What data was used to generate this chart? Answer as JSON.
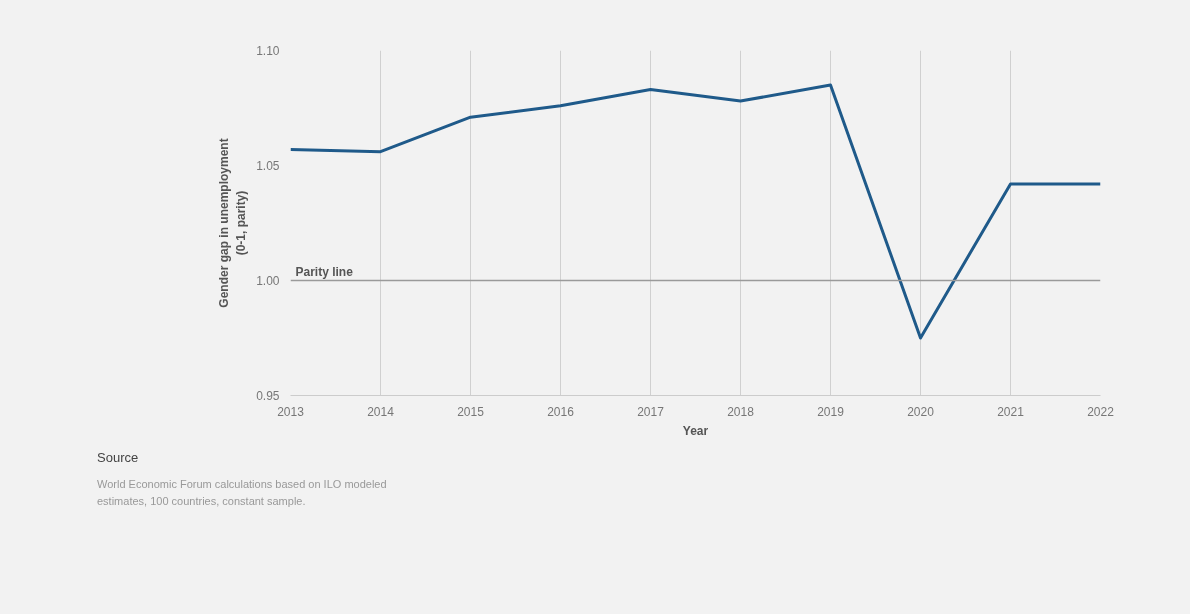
{
  "chart_data": {
    "type": "line",
    "xlabel": "Year",
    "ylabel": "Gender gap in unemployment\n(0-1, parity)",
    "x": [
      2013,
      2014,
      2015,
      2016,
      2017,
      2018,
      2019,
      2020,
      2021,
      2022
    ],
    "xlim": [
      2013,
      2022
    ],
    "xticks": [
      2013,
      2014,
      2015,
      2016,
      2017,
      2018,
      2019,
      2020,
      2021,
      2022
    ],
    "ylim": [
      0.95,
      1.1
    ],
    "yticks": [
      {
        "value": 0.95,
        "label": "0.95"
      },
      {
        "value": 1.0,
        "label": "1.00"
      },
      {
        "value": 1.05,
        "label": "1.05"
      },
      {
        "value": 1.1,
        "label": "1.10"
      }
    ],
    "series": [
      {
        "color": "#1f5a8a",
        "values": [
          1.057,
          1.056,
          1.071,
          1.076,
          1.083,
          1.078,
          1.085,
          0.975,
          1.042,
          1.042
        ]
      }
    ],
    "ref_lines": [
      {
        "axis": "y",
        "value": 1.0,
        "label": "Parity line",
        "color": "#9a9a9a"
      }
    ],
    "grid": "x",
    "marker": "none",
    "line_style": "solid",
    "annotations": [
      "Source",
      "World Economic Forum calculations based on ILO modeled\nestimates, 100 countries, constant sample."
    ]
  }
}
